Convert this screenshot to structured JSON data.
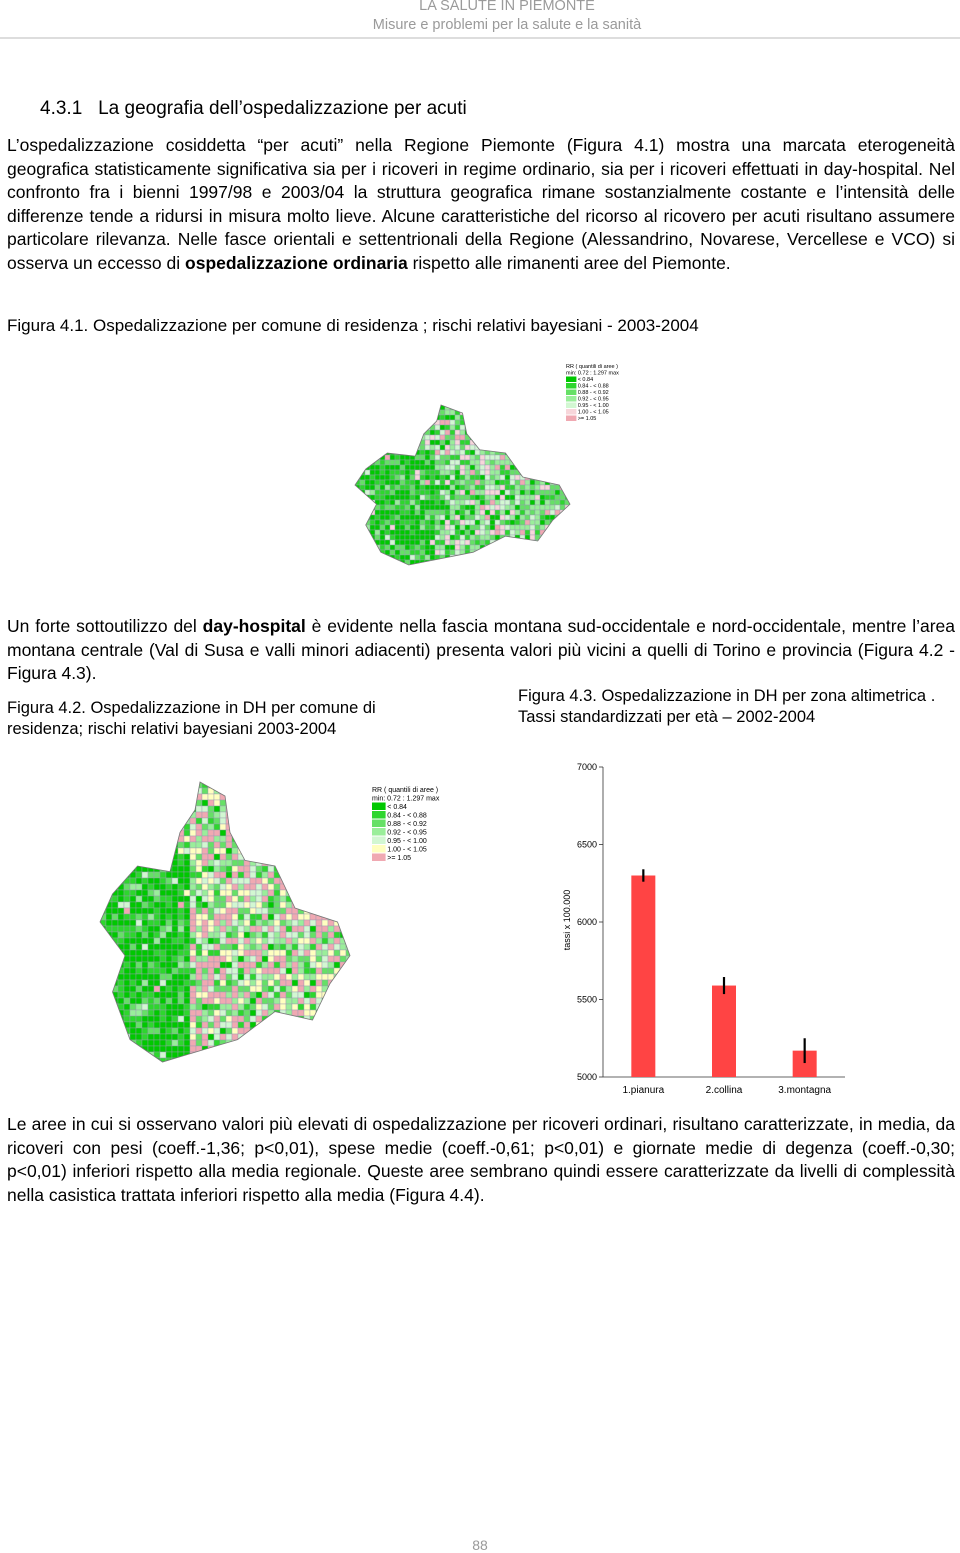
{
  "header": {
    "title": "LA SALUTE IN PIEMONTE",
    "subtitle": "Misure e problemi per la salute e la sanità"
  },
  "section_heading": "4.3.1   La geografia dell’ospedalizzazione per acuti",
  "paragraphs": [
    [
      {
        "text": "L’ospedalizzazione cosiddetta “per acuti” nella Regione Piemonte (Figura 4.1) mostra una marcata eterogeneità geografica statisticamente significativa sia per i ricoveri in regime ordinario, sia per i ricoveri effettuati in day-hospital. Nel confronto fra i bienni 1997/98 e 2003/04 la struttura geografica rimane sostanzialmente costante e l’intensità delle differenze tende a ridursi in misura molto lieve. Alcune caratteristiche del ricorso al ricovero per acuti risultano assumere particolare rilevanza. Nelle fasce orientali e settentrionali della Regione (Alessandrino, Novarese, Vercellese e VCO) si osserva un eccesso di "
      },
      {
        "text": "ospedalizzazione ordinaria",
        "bold": true
      },
      {
        "text": " rispetto alle rimanenti aree del Piemonte."
      }
    ],
    [
      {
        "text": "Un forte sottoutilizzo del "
      },
      {
        "text": "day-hospital",
        "bold": true
      },
      {
        "text": " è evidente nella fascia montana sud-occidentale e nord-occidentale, mentre l’area montana centrale (Val di Susa e valli minori adiacenti) presenta valori più vicini a quelli di Torino e provincia (Figura 4.2 - Figura 4.3)."
      }
    ],
    [
      {
        "text": "Le aree in cui si osservano valori più elevati di ospedalizzazione per ricoveri ordinari, risultano caratterizzate, in media, da ricoveri con pesi (coeff.-1,36; p<0,01), spese medie (coeff.-0,61; p<0,01) e giornate medie di degenza (coeff.-0,30; p<0,01) inferiori rispetto alla media regionale. Queste aree sembrano quindi essere caratterizzate da livelli di complessità nella casistica trattata inferiori rispetto alla media (Figura 4.4)."
      }
    ]
  ],
  "figure_4_1": {
    "caption": "Figura 4.1. Ospedalizzazione per comune di residenza ; rischi relativi bayesiani - 2003-2004",
    "legend": {
      "title": "RR ( quantili di aree )",
      "range": "min: 0.72 : 1.297 max",
      "items": [
        {
          "label": "< 0.84",
          "color": "#00c800"
        },
        {
          "label": "0.84 - < 0.88",
          "color": "#2ed62e"
        },
        {
          "label": "0.88 - < 0.92",
          "color": "#66e066"
        },
        {
          "label": "0.92 - < 0.95",
          "color": "#9aee9a"
        },
        {
          "label": "0.95 - < 1.00",
          "color": "#d2f7d2"
        },
        {
          "label": "1.00 - < 1.05",
          "color": "#f7d6da"
        },
        {
          "label": ">= 1.05",
          "color": "#f0a9b2"
        }
      ]
    }
  },
  "figure_4_2": {
    "caption": "Figura 4.2. Ospedalizzazione in DH per comune di residenza; rischi relativi bayesiani 2003-2004",
    "legend": {
      "title": "RR ( quantili di aree )",
      "range": "min: 0.72 : 1.297 max",
      "items": [
        {
          "label": "< 0.84",
          "color": "#00c800"
        },
        {
          "label": "0.84 - < 0.88",
          "color": "#2ed62e"
        },
        {
          "label": "0.88 - < 0.92",
          "color": "#66e066"
        },
        {
          "label": "0.92 - < 0.95",
          "color": "#9aee9a"
        },
        {
          "label": "0.95 - < 1.00",
          "color": "#d2f7d2"
        },
        {
          "label": "1.00 - < 1.05",
          "color": "#ffffc0"
        },
        {
          "label": ">= 1.05",
          "color": "#f0a9b2"
        }
      ]
    }
  },
  "figure_4_3": {
    "caption": "Figura 4.3. Ospedalizzazione in DH per zona altimetrica . Tassi standardizzati per età – 2002-2004",
    "chart": {
      "type": "bar",
      "y_label": "tassi x 100.000",
      "categories": [
        "1.pianura",
        "2.collina",
        "3.montagna"
      ],
      "values": [
        6300,
        5590,
        5170
      ],
      "errors": [
        40,
        55,
        80
      ],
      "color": "#ff4444",
      "ylim": [
        5000,
        7000
      ],
      "yticks": [
        5000,
        5500,
        6000,
        6500,
        7000
      ]
    }
  },
  "footer": {
    "page_number": "88"
  }
}
